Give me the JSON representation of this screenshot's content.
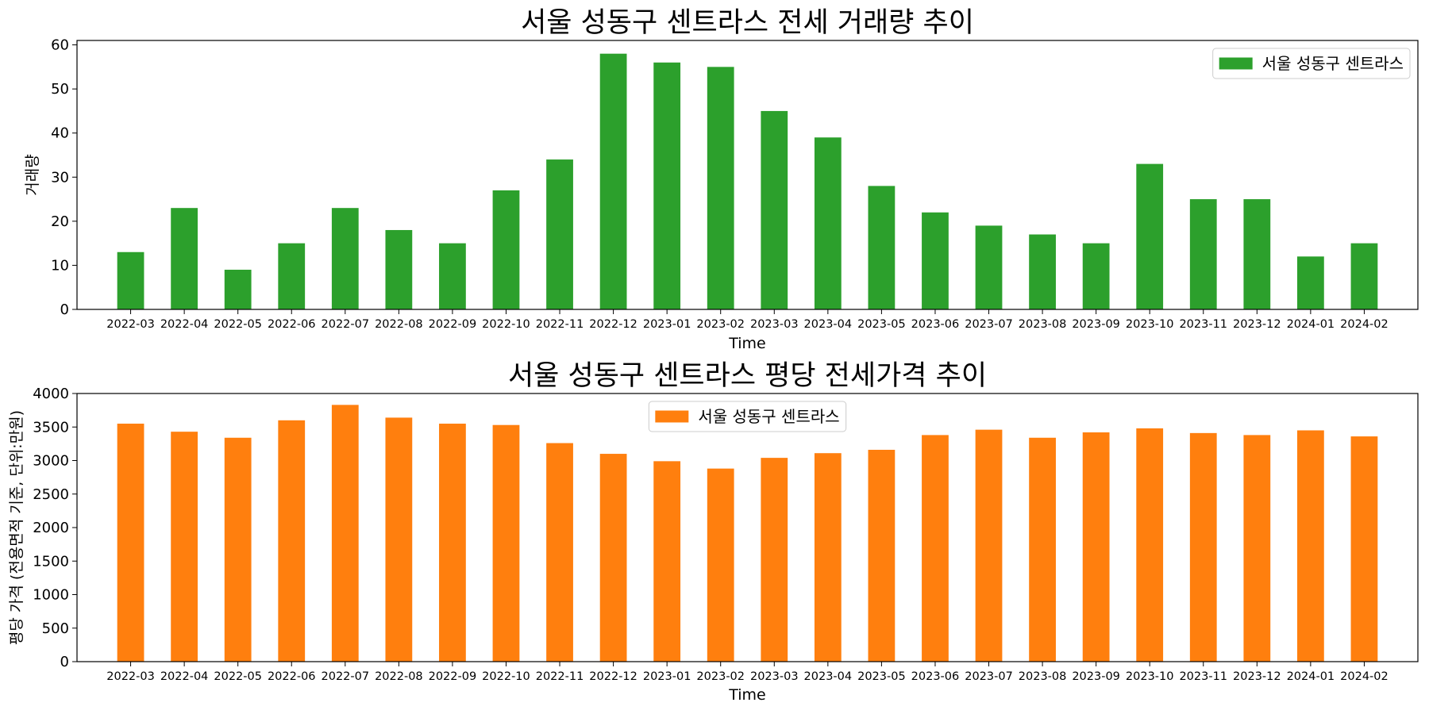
{
  "chart_data": [
    {
      "type": "bar",
      "title": "서울 성동구 센트라스 전세 거래량 추이",
      "xlabel": "Time",
      "ylabel": "거래량",
      "categories": [
        "2022-03",
        "2022-04",
        "2022-05",
        "2022-06",
        "2022-07",
        "2022-08",
        "2022-09",
        "2022-10",
        "2022-11",
        "2022-12",
        "2023-01",
        "2023-02",
        "2023-03",
        "2023-04",
        "2023-05",
        "2023-06",
        "2023-07",
        "2023-08",
        "2023-09",
        "2023-10",
        "2023-11",
        "2023-12",
        "2024-01",
        "2024-02"
      ],
      "series": [
        {
          "name": "서울 성동구 센트라스",
          "color": "#2ca02c",
          "values": [
            13,
            23,
            9,
            15,
            23,
            18,
            15,
            27,
            34,
            58,
            56,
            55,
            45,
            39,
            28,
            22,
            19,
            17,
            15,
            33,
            25,
            25,
            12,
            15
          ]
        }
      ],
      "ylim": [
        0,
        61
      ],
      "yticks": [
        0,
        10,
        20,
        30,
        40,
        50,
        60
      ],
      "legend_position": "top-right",
      "grid": false
    },
    {
      "type": "bar",
      "title": "서울 성동구 센트라스 평당 전세가격 추이",
      "xlabel": "Time",
      "ylabel": "평당 가격 (전용면적 기준, 단위:만원)",
      "categories": [
        "2022-03",
        "2022-04",
        "2022-05",
        "2022-06",
        "2022-07",
        "2022-08",
        "2022-09",
        "2022-10",
        "2022-11",
        "2022-12",
        "2023-01",
        "2023-02",
        "2023-03",
        "2023-04",
        "2023-05",
        "2023-06",
        "2023-07",
        "2023-08",
        "2023-09",
        "2023-10",
        "2023-11",
        "2023-12",
        "2024-01",
        "2024-02"
      ],
      "series": [
        {
          "name": "서울 성동구 센트라스",
          "color": "#ff7f0e",
          "values": [
            3550,
            3430,
            3340,
            3600,
            3830,
            3640,
            3550,
            3530,
            3260,
            3100,
            2990,
            2880,
            3040,
            3110,
            3160,
            3380,
            3460,
            3340,
            3420,
            3480,
            3410,
            3380,
            3450,
            3360
          ]
        }
      ],
      "ylim": [
        0,
        4000
      ],
      "yticks": [
        0,
        500,
        1000,
        1500,
        2000,
        2500,
        3000,
        3500,
        4000
      ],
      "legend_position": "top-center",
      "grid": false
    }
  ]
}
